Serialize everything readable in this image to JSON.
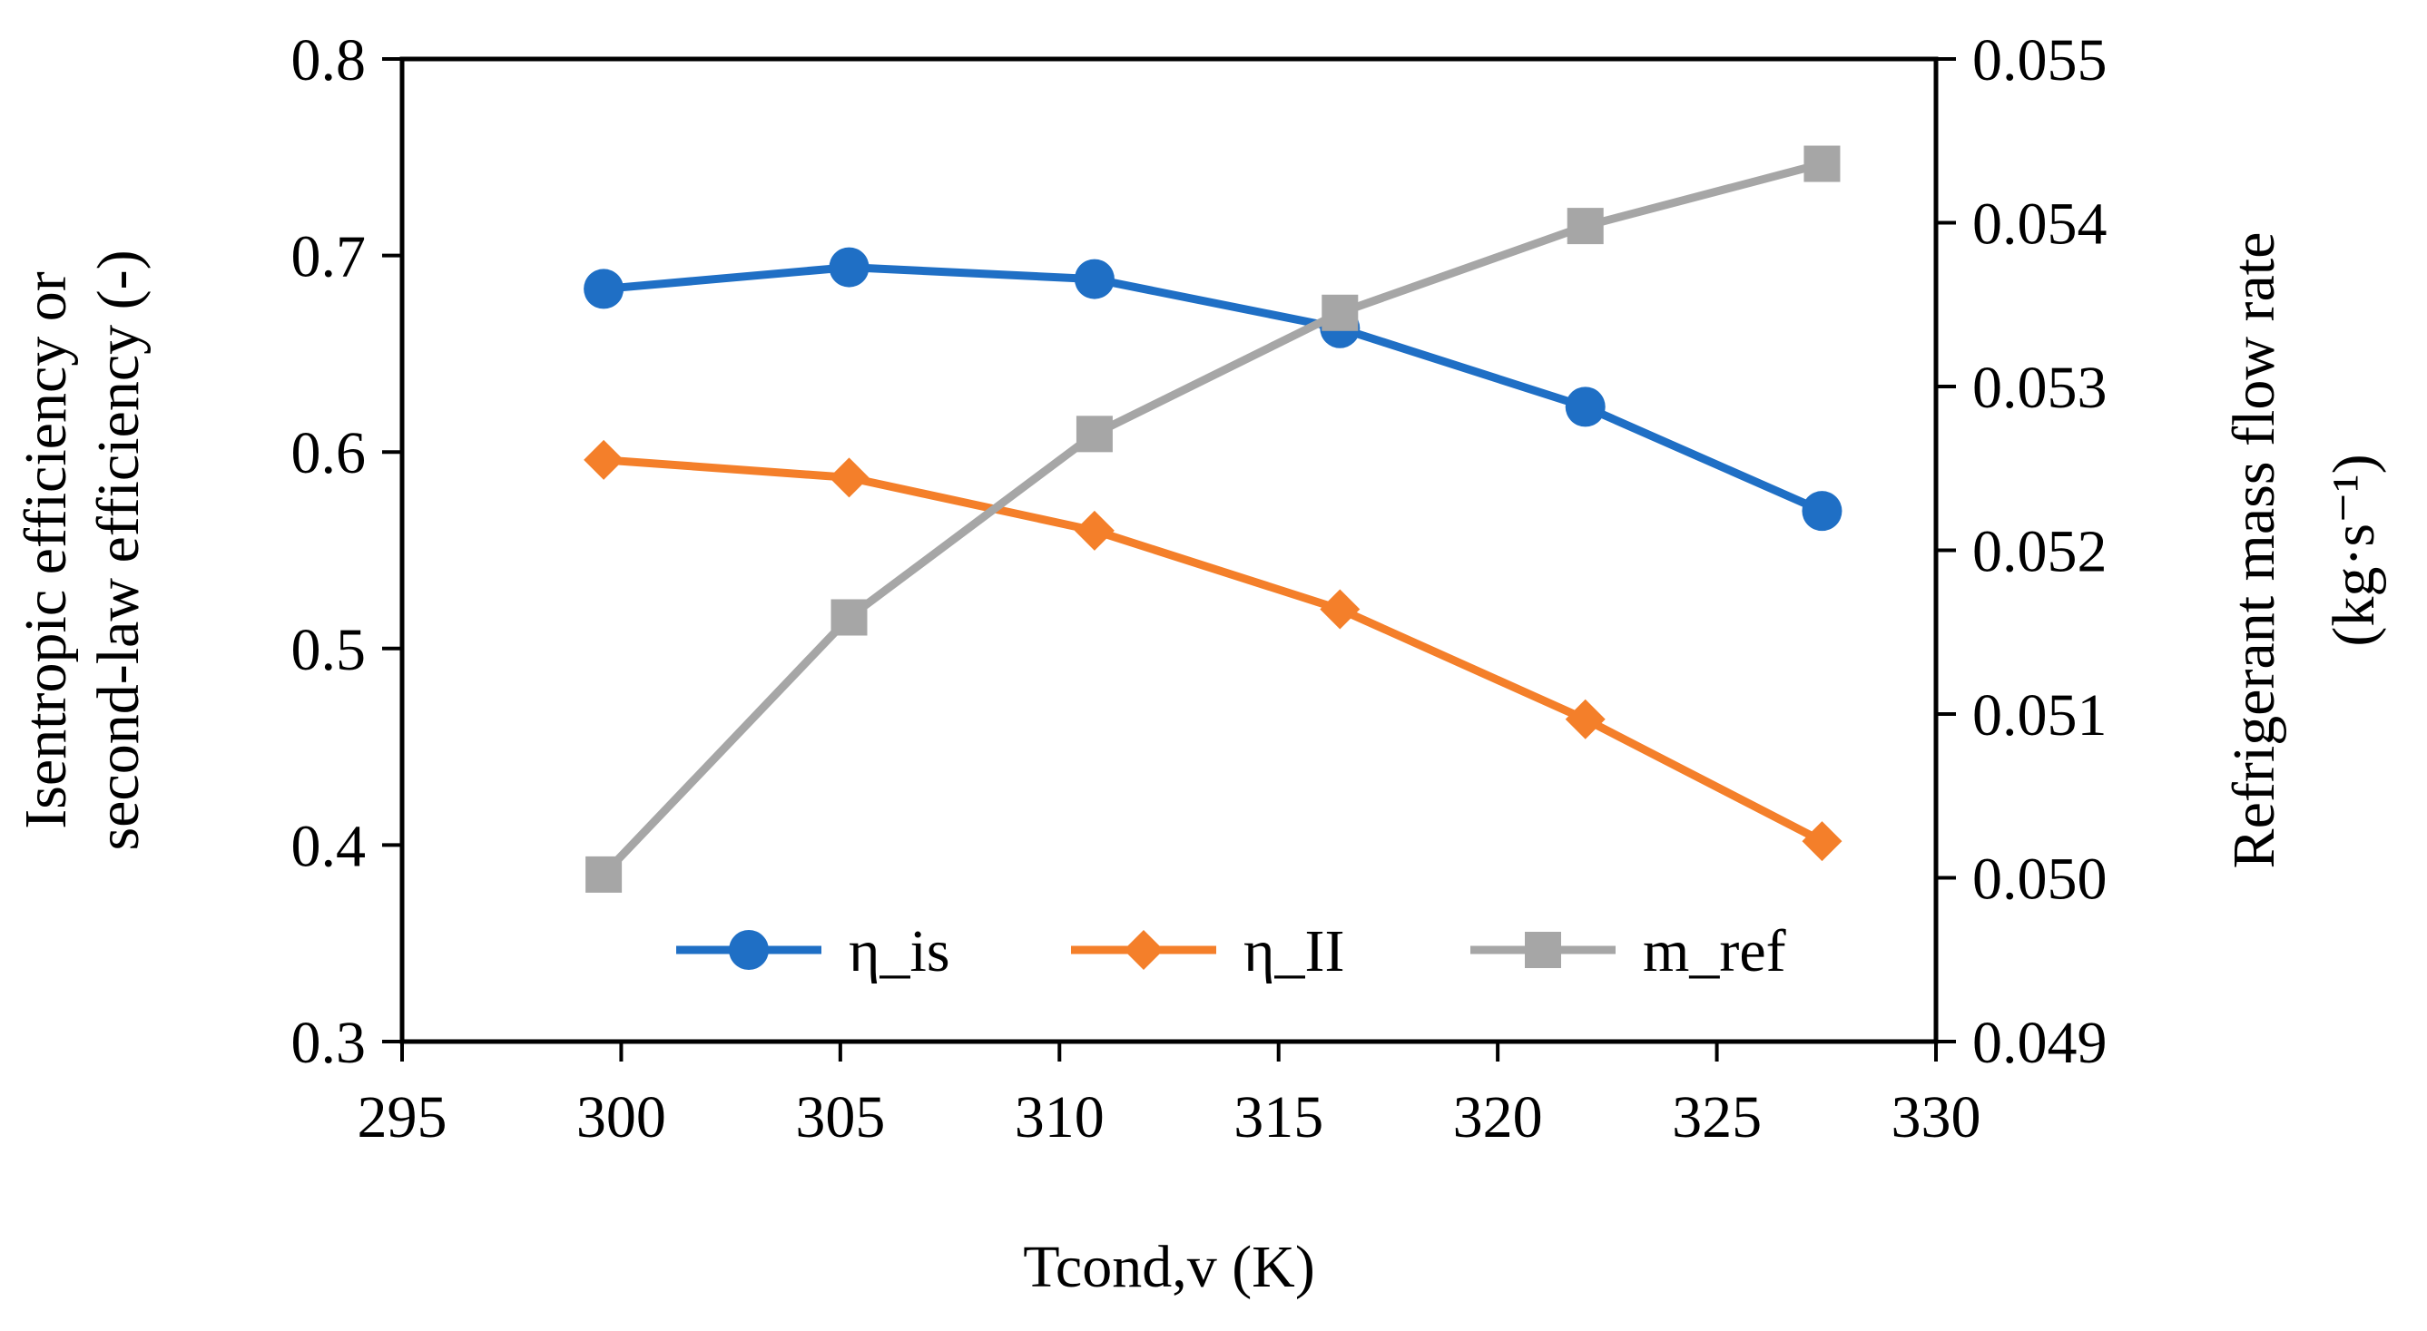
{
  "chart_data": {
    "type": "line",
    "title": "",
    "xlabel": "Tcond,v (K)",
    "ylabel_lines": [
      "Isentropic efficiency or",
      "second-law efficiency (-)"
    ],
    "y2label_lines": [
      "Refrigerant mass flow rate",
      "(kg·s⁻¹)"
    ],
    "xlim": [
      295,
      330
    ],
    "ylim": [
      0.3,
      0.8
    ],
    "y2lim": [
      0.049,
      0.055
    ],
    "xticks": [
      295,
      300,
      305,
      310,
      315,
      320,
      325,
      330
    ],
    "yticks": [
      0.3,
      0.4,
      0.5,
      0.6,
      0.7,
      0.8
    ],
    "y2ticks": [
      0.049,
      0.05,
      0.051,
      0.052,
      0.053,
      0.054,
      0.055
    ],
    "xtick_labels": [
      "295",
      "300",
      "305",
      "310",
      "315",
      "320",
      "325",
      "330"
    ],
    "ytick_labels": [
      "0.3",
      "0.4",
      "0.5",
      "0.6",
      "0.7",
      "0.8"
    ],
    "y2tick_labels": [
      "0.049",
      "0.050",
      "0.051",
      "0.052",
      "0.053",
      "0.054",
      "0.055"
    ],
    "grid": false,
    "legend_position": "bottom-center inside plot",
    "series": [
      {
        "name": "η_is",
        "axis": "left",
        "marker": "circle",
        "color": "#1F6FC5",
        "x": [
          299.6,
          305.2,
          310.8,
          316.4,
          322.0,
          327.4
        ],
        "values": [
          0.683,
          0.694,
          0.688,
          0.663,
          0.623,
          0.57
        ]
      },
      {
        "name": "η_II",
        "axis": "left",
        "marker": "diamond",
        "color": "#F47F2A",
        "x": [
          299.6,
          305.2,
          310.8,
          316.4,
          322.0,
          327.4
        ],
        "values": [
          0.596,
          0.587,
          0.56,
          0.52,
          0.464,
          0.402
        ]
      },
      {
        "name": "m_ref",
        "axis": "right",
        "marker": "square",
        "color": "#A6A6A6",
        "x": [
          299.6,
          305.2,
          310.8,
          316.4,
          322.0,
          327.4
        ],
        "values": [
          0.05002,
          0.05159,
          0.05271,
          0.05345,
          0.05398,
          0.05436
        ]
      }
    ]
  }
}
